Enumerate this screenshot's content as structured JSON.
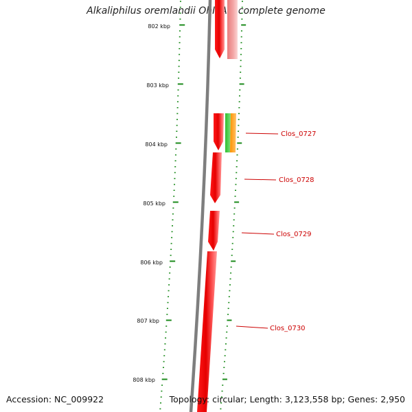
{
  "title": "Alkaliphilus oremlandii OhILAs, complete genome",
  "footer": {
    "accession": "Accession: NC_009922",
    "topology": "Topology: circular; Length: 3,123,558 bp; Genes: 2,950"
  },
  "colors": {
    "backbone": "#808080",
    "gene_red": "#ee0000",
    "gene_pink": "#f2a0a0",
    "gene_green": "#33cc33",
    "gene_orange": "#ff9900",
    "tick_green": "#1a8a1a",
    "label_red": "#cc0000"
  },
  "ruler": {
    "labels": [
      "802 kbp",
      "803 kbp",
      "804 kbp",
      "805 kbp",
      "806 kbp",
      "807 kbp",
      "808 kbp"
    ]
  },
  "genes": [
    {
      "id": "gene-upper-red",
      "color": "red",
      "strand": "forward"
    },
    {
      "id": "gene-upper-pink",
      "color": "pink",
      "strand": "reverse"
    },
    {
      "id": "Clos_0727",
      "label": "Clos_0727",
      "color": "red",
      "strand": "forward"
    },
    {
      "id": "gene-0727-green",
      "color": "green",
      "strand": "reverse"
    },
    {
      "id": "gene-0727-orange",
      "color": "orange",
      "strand": "reverse"
    },
    {
      "id": "Clos_0728",
      "label": "Clos_0728",
      "color": "red",
      "strand": "forward"
    },
    {
      "id": "Clos_0729",
      "label": "Clos_0729",
      "color": "red",
      "strand": "forward"
    },
    {
      "id": "Clos_0730",
      "label": "Clos_0730",
      "color": "red",
      "strand": "forward"
    }
  ]
}
